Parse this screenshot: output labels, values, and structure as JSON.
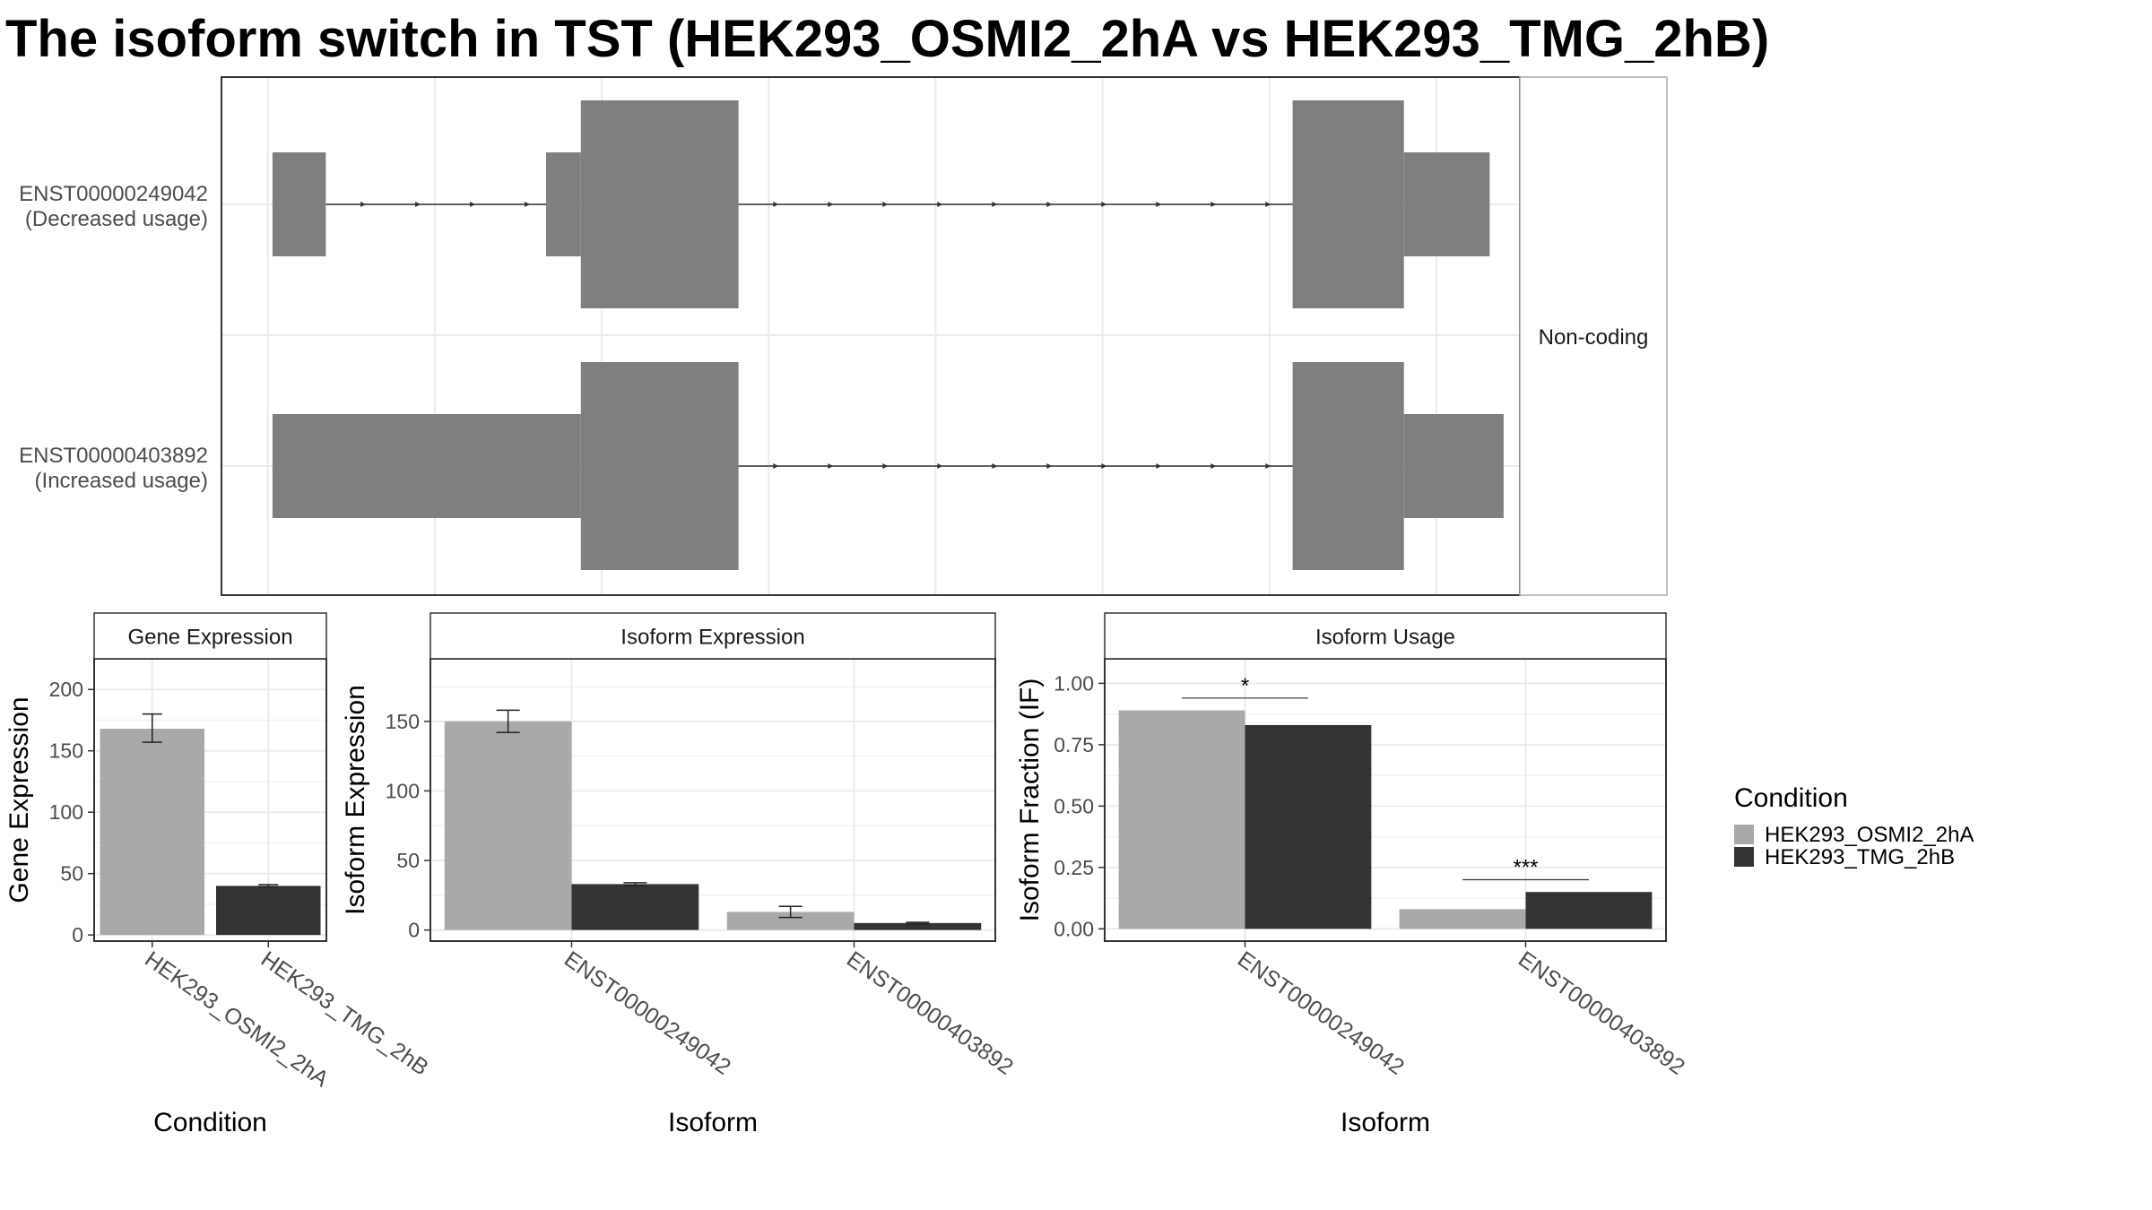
{
  "title": "The isoform switch in TST (HEK293_OSMI2_2hA vs HEK293_TMG_2hB)",
  "structure": {
    "strip_label": "Non-coding",
    "exon_color": "#7f7f7f",
    "isoforms": [
      {
        "id": "ENST00000249042",
        "usage": "(Decreased usage)",
        "exons": [
          {
            "start": 2,
            "end": 25,
            "height": "small"
          },
          {
            "start": 120,
            "end": 135,
            "height": "small"
          },
          {
            "start": 135,
            "end": 203,
            "height": "tall"
          },
          {
            "start": 442,
            "end": 490,
            "height": "tall"
          },
          {
            "start": 490,
            "end": 527,
            "height": "small"
          }
        ],
        "introns": [
          [
            25,
            120
          ],
          [
            203,
            442
          ]
        ]
      },
      {
        "id": "ENST00000403892",
        "usage": "(Increased usage)",
        "exons": [
          {
            "start": 2,
            "end": 135,
            "height": "small"
          },
          {
            "start": 135,
            "end": 203,
            "height": "tall"
          },
          {
            "start": 442,
            "end": 490,
            "height": "tall"
          },
          {
            "start": 490,
            "end": 533,
            "height": "small"
          }
        ],
        "introns": [
          [
            203,
            442
          ]
        ]
      }
    ],
    "x_range": [
      -20,
      540
    ],
    "gridlines": [
      0,
      72,
      144,
      216,
      288,
      360,
      432,
      504
    ]
  },
  "chart_data": [
    {
      "type": "bar",
      "strip": "Gene Expression",
      "xlabel": "Condition",
      "ylabel": "Gene Expression",
      "categories": [
        "HEK293_OSMI2_2hA",
        "HEK293_TMG_2hB"
      ],
      "values": [
        168,
        40
      ],
      "error": [
        [
          157,
          180
        ],
        [
          39,
          41
        ]
      ],
      "ylim": [
        -5,
        225
      ],
      "yticks": [
        0,
        50,
        100,
        150,
        200
      ],
      "ytick_labels": [
        "0",
        "50",
        "100",
        "150",
        "200"
      ]
    },
    {
      "type": "bar",
      "strip": "Isoform Expression",
      "xlabel": "Isoform",
      "ylabel": "Isoform Expression",
      "categories": [
        "ENST00000249042",
        "ENST00000403892"
      ],
      "series": [
        {
          "condition": "HEK293_OSMI2_2hA",
          "values": [
            150,
            13
          ],
          "error": [
            [
              142,
              158
            ],
            [
              9,
              17
            ]
          ]
        },
        {
          "condition": "HEK293_TMG_2hB",
          "values": [
            33,
            5
          ],
          "error": [
            [
              32,
              34
            ],
            [
              4.5,
              5.5
            ]
          ]
        }
      ],
      "ylim": [
        -8,
        195
      ],
      "yticks": [
        0,
        50,
        100,
        150
      ],
      "ytick_labels": [
        "0",
        "50",
        "100",
        "150"
      ]
    },
    {
      "type": "bar",
      "strip": "Isoform Usage",
      "xlabel": "Isoform",
      "ylabel": "Isoform Fraction (IF)",
      "categories": [
        "ENST00000249042",
        "ENST00000403892"
      ],
      "series": [
        {
          "condition": "HEK293_OSMI2_2hA",
          "values": [
            0.89,
            0.08
          ]
        },
        {
          "condition": "HEK293_TMG_2hB",
          "values": [
            0.83,
            0.15
          ]
        }
      ],
      "significance": [
        "*",
        "***"
      ],
      "sig_y": [
        0.94,
        0.2
      ],
      "ylim": [
        -0.05,
        1.1
      ],
      "yticks": [
        0,
        0.25,
        0.5,
        0.75,
        1.0
      ],
      "ytick_labels": [
        "0.00",
        "0.25",
        "0.50",
        "0.75",
        "1.00"
      ]
    }
  ],
  "legend": {
    "title": "Condition",
    "entries": [
      {
        "label": "HEK293_OSMI2_2hA",
        "color": "#a9a9a9"
      },
      {
        "label": "HEK293_TMG_2hB",
        "color": "#333333"
      }
    ]
  }
}
